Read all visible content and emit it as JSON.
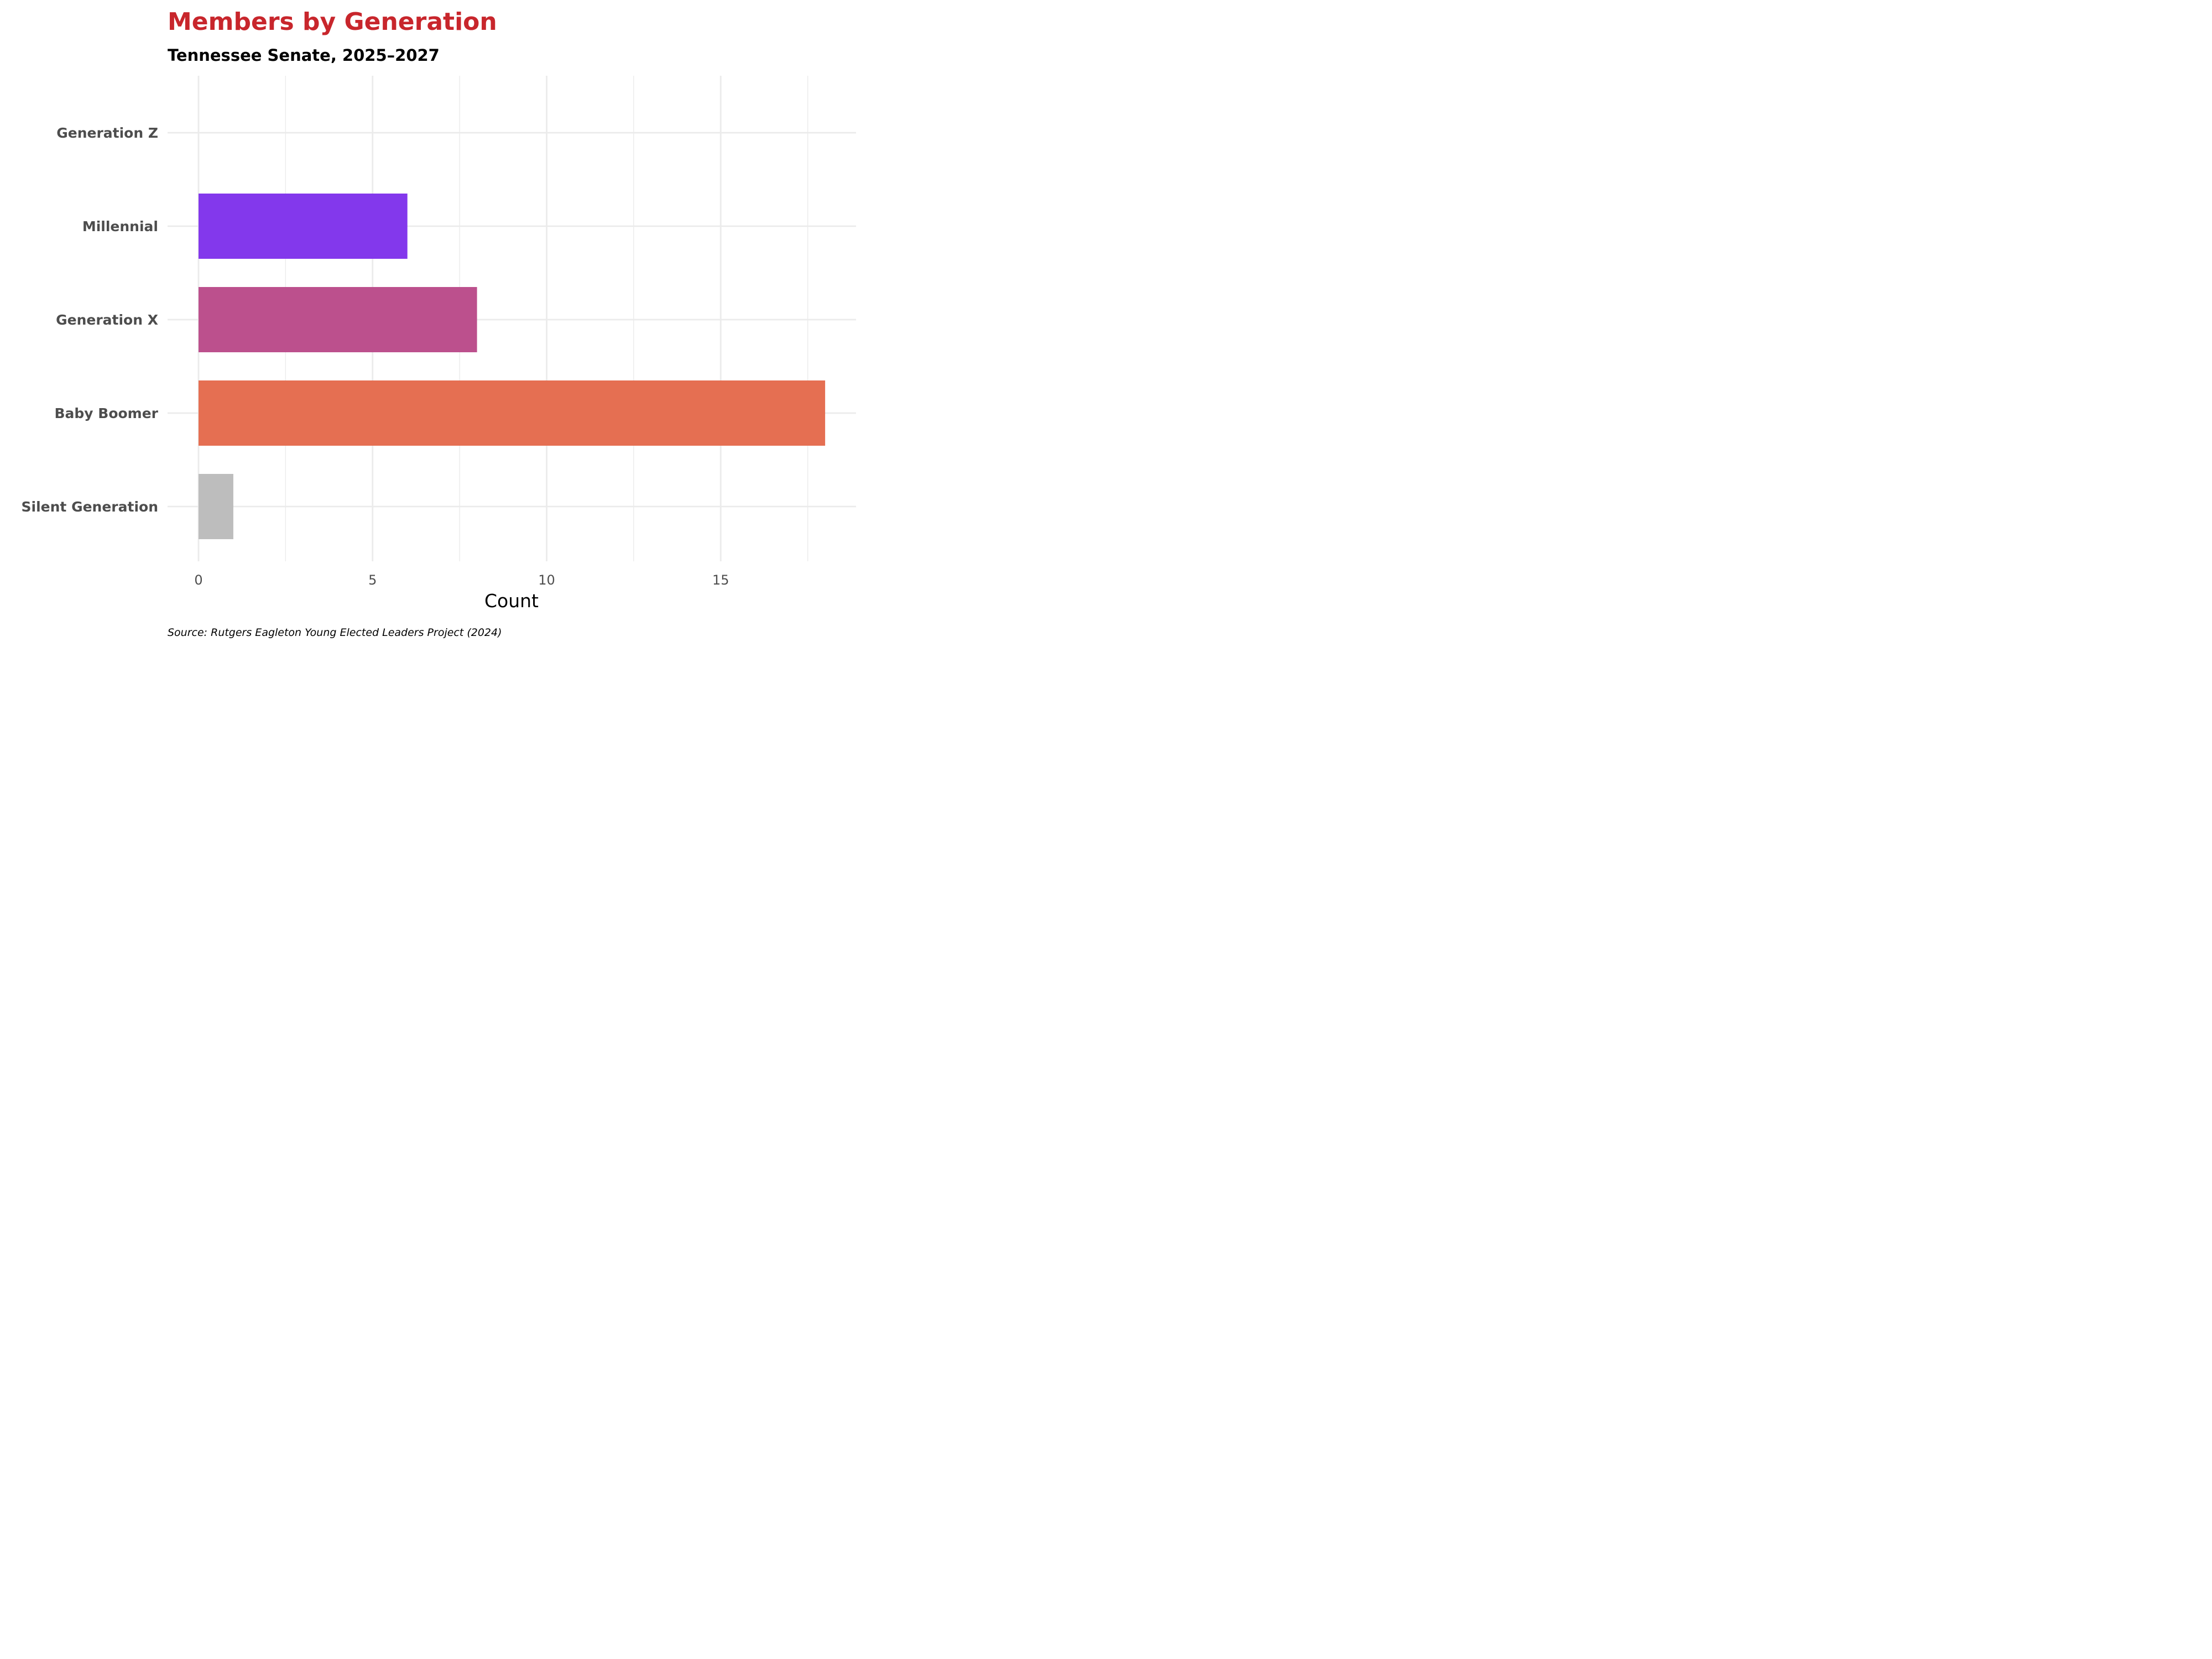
{
  "chart_data": {
    "type": "bar",
    "orientation": "horizontal",
    "title": "Members by Generation",
    "subtitle": "Tennessee Senate, 2025–2027",
    "caption": "Source: Rutgers Eagleton Young Elected Leaders Project (2024)",
    "xlabel": "Count",
    "ylabel": "",
    "xlim": [
      0,
      18.9
    ],
    "x_ticks": [
      0,
      5,
      10,
      15
    ],
    "x_tick_labels": [
      "0",
      "5",
      "10",
      "15"
    ],
    "categories": [
      "Generation Z",
      "Millennial",
      "Generation X",
      "Baby Boomer",
      "Silent Generation"
    ],
    "values": [
      0,
      6,
      8,
      18,
      1
    ],
    "colors": [
      "#ffffff",
      "#8338ec",
      "#bc508d",
      "#e56f52",
      "#bdbdbd"
    ],
    "grid": true,
    "legend": "none"
  }
}
